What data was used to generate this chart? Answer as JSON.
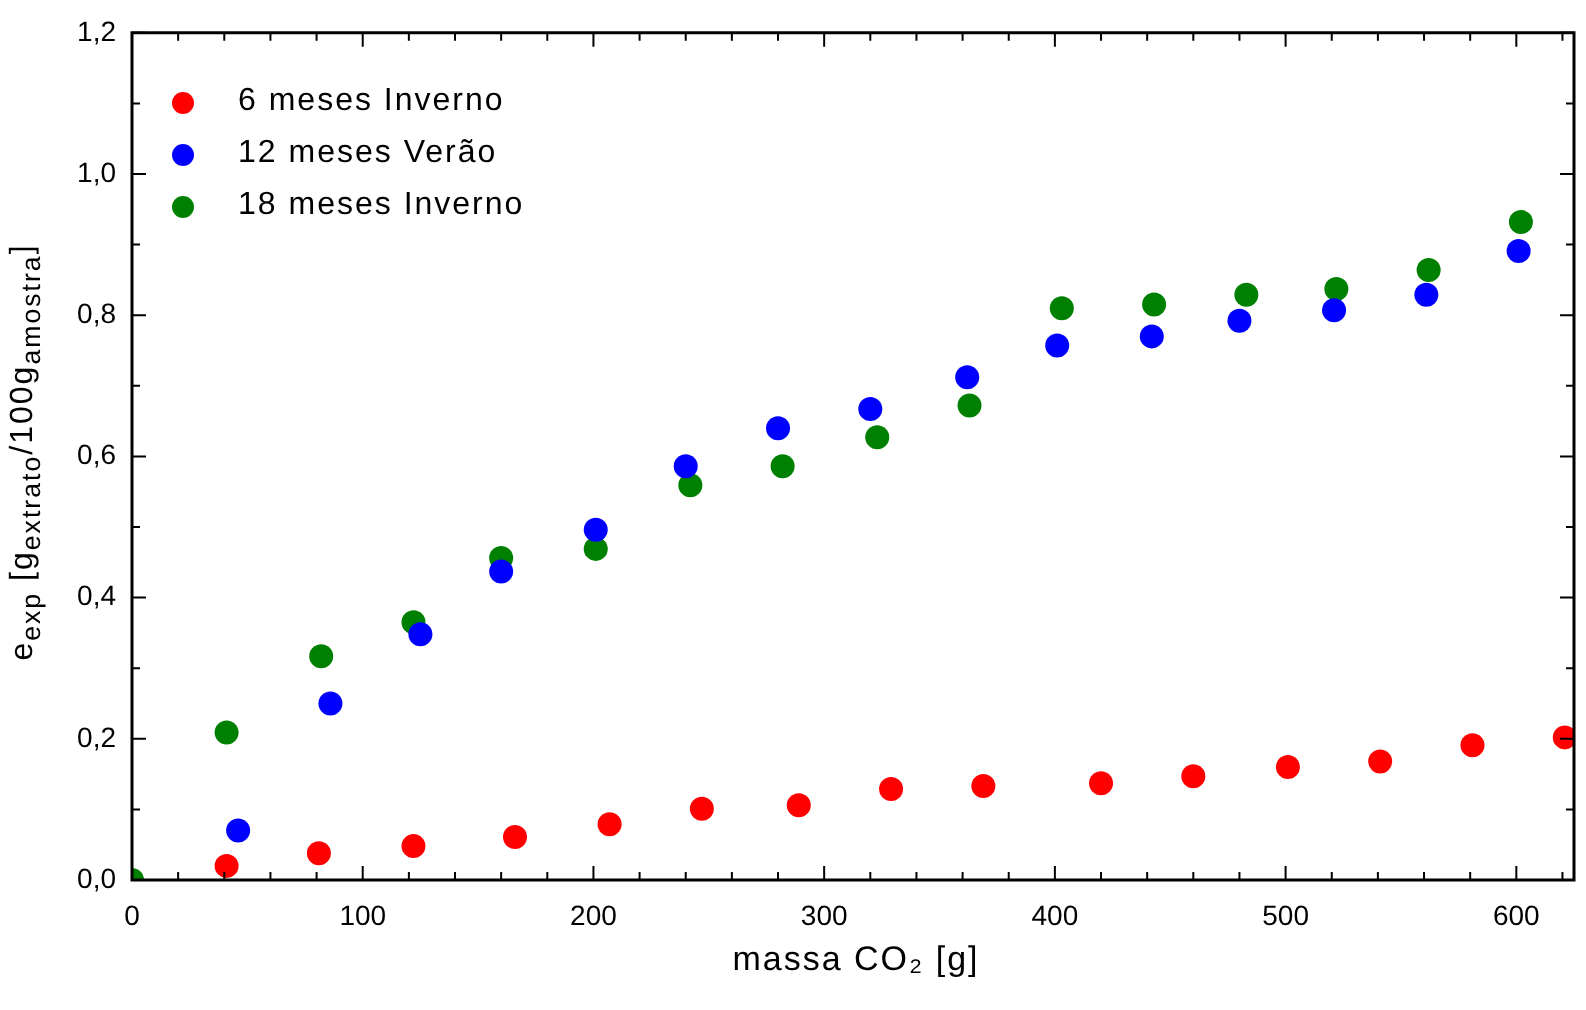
{
  "chart_data": {
    "type": "scatter",
    "xlabel": "massa CO₂ [g]",
    "ylabel": "e$_{exp}$ [g$_{extrato}$/100g$_{amostra}$]",
    "xlim": [
      0,
      625
    ],
    "ylim": [
      0,
      1.2
    ],
    "xticks": [
      0,
      {
        "value": 20,
        "label": null
      },
      {
        "value": 40,
        "label": null
      },
      {
        "value": 60,
        "label": null
      },
      {
        "value": 80,
        "label": null
      },
      100,
      {
        "value": 120,
        "label": null
      },
      {
        "value": 140,
        "label": null
      },
      {
        "value": 160,
        "label": null
      },
      {
        "value": 180,
        "label": null
      },
      200,
      {
        "value": 220,
        "label": null
      },
      {
        "value": 240,
        "label": null
      },
      {
        "value": 260,
        "label": null
      },
      {
        "value": 280,
        "label": null
      },
      300,
      {
        "value": 320,
        "label": null
      },
      {
        "value": 340,
        "label": null
      },
      {
        "value": 360,
        "label": null
      },
      {
        "value": 380,
        "label": null
      },
      400,
      {
        "value": 420,
        "label": null
      },
      {
        "value": 440,
        "label": null
      },
      {
        "value": 460,
        "label": null
      },
      {
        "value": 480,
        "label": null
      },
      500,
      {
        "value": 520,
        "label": null
      },
      {
        "value": 540,
        "label": null
      },
      {
        "value": 560,
        "label": null
      },
      {
        "value": 580,
        "label": null
      },
      600,
      {
        "value": 620,
        "label": null
      }
    ],
    "yticks": [
      {
        "value": 0,
        "label": "0,0"
      },
      {
        "value": 0.1,
        "label": null
      },
      {
        "value": 0.2,
        "label": "0,2"
      },
      {
        "value": 0.3,
        "label": null
      },
      {
        "value": 0.4,
        "label": "0,4"
      },
      {
        "value": 0.5,
        "label": null
      },
      {
        "value": 0.6,
        "label": "0,6"
      },
      {
        "value": 0.7,
        "label": null
      },
      {
        "value": 0.8,
        "label": "0,8"
      },
      {
        "value": 0.9,
        "label": null
      },
      {
        "value": 1.0,
        "label": "1,0"
      },
      {
        "value": 1.1,
        "label": null
      },
      {
        "value": 1.2,
        "label": "1,2"
      }
    ],
    "grid": false,
    "legend": "top left",
    "marker": "circle",
    "series": [
      {
        "name": "6 meses Inverno",
        "color": "#ff0000",
        "x": [
          41,
          81,
          122,
          166,
          207,
          247,
          289,
          329,
          369,
          420,
          460,
          501,
          541,
          581,
          621
        ],
        "values": [
          0.02,
          0.038,
          0.048,
          0.061,
          0.079,
          0.101,
          0.106,
          0.129,
          0.133,
          0.137,
          0.147,
          0.16,
          0.168,
          0.191,
          0.202
        ]
      },
      {
        "name": "12 meses Verão",
        "color": "#0000ff",
        "x": [
          46,
          86,
          125,
          160,
          201,
          240,
          280,
          320,
          362,
          401,
          442,
          480,
          521,
          561,
          601
        ],
        "values": [
          0.07,
          0.25,
          0.348,
          0.437,
          0.496,
          0.586,
          0.64,
          0.667,
          0.712,
          0.757,
          0.77,
          0.792,
          0.807,
          0.829,
          0.891
        ]
      },
      {
        "name": "18 meses Inverno",
        "color": "#008000",
        "x": [
          0,
          41,
          82,
          122,
          160,
          201,
          242,
          282,
          323,
          363,
          403,
          443,
          483,
          522,
          562,
          602
        ],
        "values": [
          0,
          0.209,
          0.317,
          0.365,
          0.456,
          0.469,
          0.559,
          0.586,
          0.627,
          0.672,
          0.81,
          0.815,
          0.829,
          0.837,
          0.864,
          0.932
        ]
      }
    ]
  }
}
